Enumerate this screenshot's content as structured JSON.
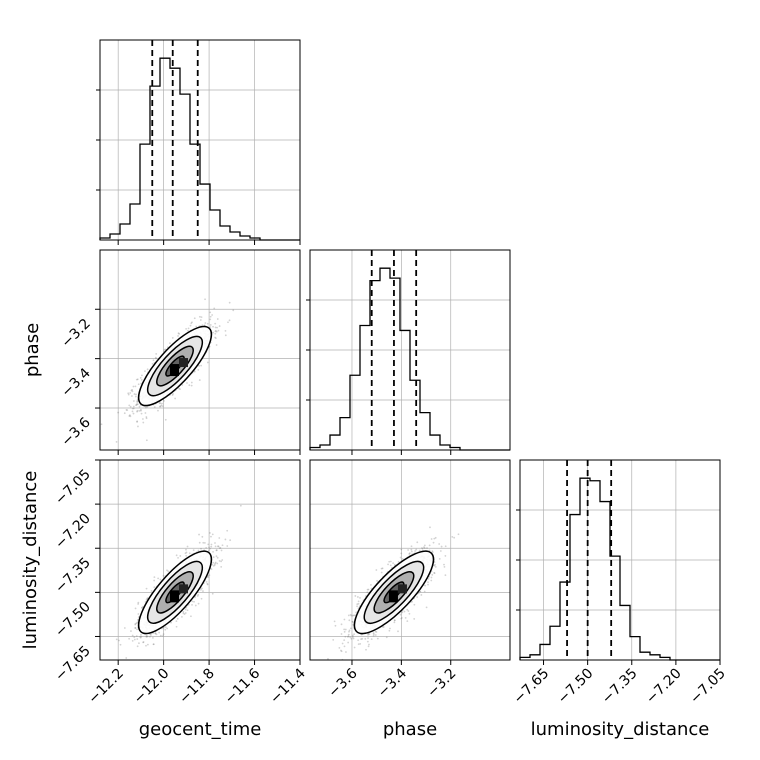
{
  "chart_data": {
    "type": "corner",
    "parameters": [
      {
        "label": "geocent_time",
        "range": [
          -12.28,
          -11.4
        ],
        "ticks": [
          -12.2,
          -12.0,
          -11.8,
          -11.6,
          -11.4
        ],
        "tick_labels": [
          "−12.2",
          "−12.0",
          "−11.8",
          "−11.6",
          "−11.4"
        ],
        "quantiles": [
          -12.05,
          -11.96,
          -11.85
        ]
      },
      {
        "label": "phase",
        "range": [
          -3.77,
          -2.96
        ],
        "ticks": [
          -3.6,
          -3.4,
          -3.2
        ],
        "tick_labels": [
          "−3.6",
          "−3.4",
          "−3.2"
        ],
        "quantiles": [
          -3.52,
          -3.43,
          -3.34
        ]
      },
      {
        "label": "luminosity_distance",
        "range": [
          -7.73,
          -7.05
        ],
        "ticks": [
          -7.65,
          -7.5,
          -7.35,
          -7.2,
          -7.05
        ],
        "tick_labels": [
          "−7.65",
          "−7.50",
          "−7.35",
          "−7.20",
          "−7.05"
        ],
        "quantiles": [
          -7.57,
          -7.5,
          -7.42
        ]
      }
    ],
    "histograms": [
      {
        "parameter": "geocent_time",
        "bin_edges": [
          -12.28,
          -12.236,
          -12.192,
          -12.148,
          -12.104,
          -12.06,
          -12.016,
          -11.972,
          -11.928,
          -11.884,
          -11.84,
          -11.796,
          -11.752,
          -11.708,
          -11.664,
          -11.62,
          -11.576,
          -11.532,
          -11.488,
          -11.444,
          -11.4
        ],
        "counts": [
          1,
          3,
          8,
          18,
          48,
          77,
          91,
          86,
          73,
          48,
          28,
          15,
          7,
          4,
          2,
          1,
          0,
          0,
          0,
          0
        ]
      },
      {
        "parameter": "phase",
        "bin_edges": [
          -3.77,
          -3.7295,
          -3.689,
          -3.6485,
          -3.608,
          -3.5675,
          -3.527,
          -3.4865,
          -3.446,
          -3.4055,
          -3.365,
          -3.3245,
          -3.284,
          -3.2435,
          -3.203,
          -3.1625,
          -3.122,
          -3.0815,
          -3.041,
          -3.0005,
          -2.96
        ],
        "counts": [
          1,
          2,
          6,
          13,
          30,
          50,
          68,
          73,
          69,
          48,
          28,
          15,
          6,
          2,
          1,
          0,
          0,
          0,
          0,
          0
        ]
      },
      {
        "parameter": "luminosity_distance",
        "bin_edges": [
          -7.73,
          -7.696,
          -7.662,
          -7.628,
          -7.594,
          -7.56,
          -7.526,
          -7.492,
          -7.458,
          -7.424,
          -7.39,
          -7.356,
          -7.322,
          -7.288,
          -7.254,
          -7.22,
          -7.186,
          -7.152,
          -7.118,
          -7.084,
          -7.05
        ],
        "counts": [
          1,
          2,
          6,
          13,
          30,
          56,
          70,
          69,
          61,
          40,
          21,
          9,
          3,
          2,
          1,
          0,
          0,
          0,
          0,
          0
        ]
      }
    ],
    "scatter_2d": [
      {
        "x": "geocent_time",
        "y": "phase",
        "mean": [
          -11.95,
          -3.43
        ],
        "sd": [
          0.08,
          0.08
        ],
        "corr": 0.8
      },
      {
        "x": "geocent_time",
        "y": "luminosity_distance",
        "mean": [
          -11.95,
          -7.5
        ],
        "sd": [
          0.08,
          0.07
        ],
        "corr": 0.8
      },
      {
        "x": "phase",
        "y": "luminosity_distance",
        "mean": [
          -3.43,
          -7.5
        ],
        "sd": [
          0.08,
          0.07
        ],
        "corr": 0.8
      }
    ],
    "contour_levels_sigma": [
      0.5,
      1.0,
      1.5,
      2.0
    ],
    "quantile_line_style": "dashed",
    "grid": true,
    "colors": {
      "line": "#000000",
      "grid": "#b0b0b0",
      "points": "#808080"
    }
  }
}
